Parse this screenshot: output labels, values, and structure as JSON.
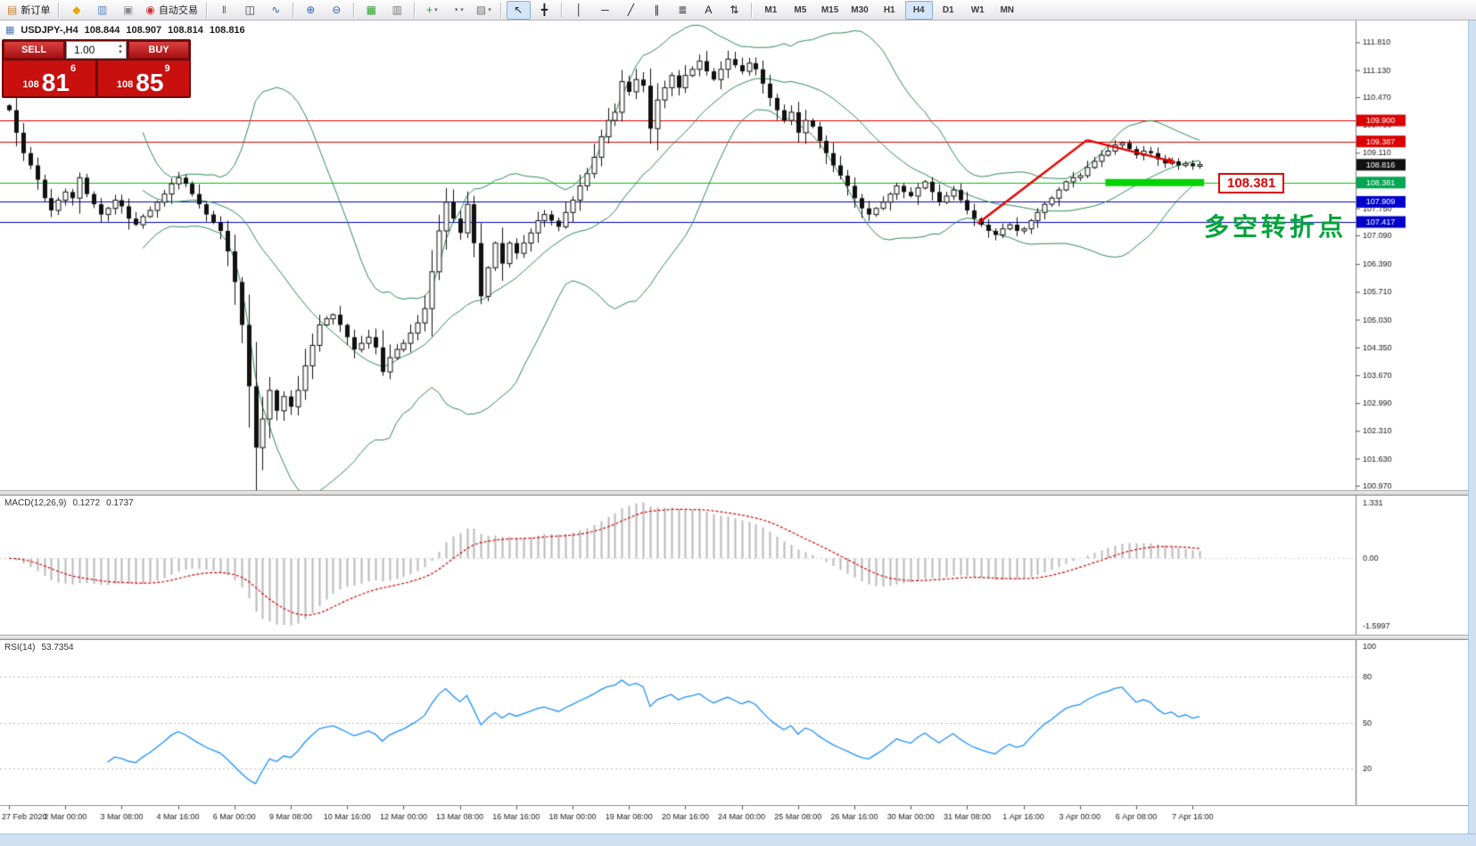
{
  "toolbar": {
    "groups": [
      {
        "items": [
          {
            "name": "new-order-button",
            "glyph": "▤",
            "color": "#c87f2f",
            "label": "新订单"
          }
        ]
      },
      {
        "items": [
          {
            "name": "metaquotes-button",
            "glyph": "◆",
            "color": "#e8a800"
          },
          {
            "name": "profiles-button",
            "glyph": "▥",
            "color": "#5b87c5"
          },
          {
            "name": "data-window-button",
            "glyph": "▣",
            "color": "#8a8a8a"
          },
          {
            "name": "autotrading-button",
            "glyph": "◉",
            "color": "#cc3333",
            "label": "自动交易"
          }
        ]
      },
      {
        "items": [
          {
            "name": "bar-chart-button",
            "glyph": "‖",
            "color": "#2e7d32"
          },
          {
            "name": "candlestick-chart-button",
            "glyph": "◫",
            "color": "#333333"
          },
          {
            "name": "line-chart-button",
            "glyph": "∿",
            "color": "#2f62b5"
          }
        ]
      },
      {
        "items": [
          {
            "name": "zoom-in-button",
            "glyph": "⊕",
            "color": "#2f62b5"
          },
          {
            "name": "zoom-out-button",
            "glyph": "⊖",
            "color": "#2f62b5"
          }
        ]
      },
      {
        "items": [
          {
            "name": "tile-windows-button",
            "glyph": "▦",
            "color": "#2f9e2f"
          },
          {
            "name": "cascade-windows-button",
            "glyph": "▥",
            "color": "#777777"
          }
        ]
      },
      {
        "items": [
          {
            "name": "new-chart-button",
            "glyph": "+",
            "color": "#1e9e1e",
            "dropdown": true
          },
          {
            "name": "periods-button",
            "glyph": "◔",
            "color": "#555555",
            "dropdown": true
          },
          {
            "name": "templates-button",
            "glyph": "▨",
            "color": "#777777",
            "dropdown": true
          }
        ]
      },
      {
        "items": [
          {
            "name": "cursor-button",
            "glyph": "↖",
            "color": "#222222",
            "active": true
          },
          {
            "name": "crosshair-button",
            "glyph": "╋",
            "color": "#222222"
          }
        ]
      },
      {
        "items": [
          {
            "name": "vertical-line-tool",
            "glyph": "│",
            "color": "#222222"
          },
          {
            "name": "horizontal-line-tool",
            "glyph": "─",
            "color": "#222222"
          },
          {
            "name": "trendline-tool",
            "glyph": "╱",
            "color": "#222222"
          },
          {
            "name": "channel-tool",
            "glyph": "∥",
            "color": "#222222"
          },
          {
            "name": "fibonacci-tool",
            "glyph": "≣",
            "color": "#222222"
          },
          {
            "name": "text-tool",
            "glyph": "A",
            "color": "#222222"
          },
          {
            "name": "arrows-tool",
            "glyph": "⇅",
            "color": "#222222"
          }
        ]
      },
      {
        "items": [
          {
            "name": "tf-m1-button",
            "label2": "M1",
            "tf": true
          },
          {
            "name": "tf-m5-button",
            "label2": "M5",
            "tf": true
          },
          {
            "name": "tf-m15-button",
            "label2": "M15",
            "tf": true
          },
          {
            "name": "tf-m30-button",
            "label2": "M30",
            "tf": true
          },
          {
            "name": "tf-h1-button",
            "label2": "H1",
            "tf": true
          },
          {
            "name": "tf-h4-button",
            "label2": "H4",
            "tf": true,
            "active": true
          },
          {
            "name": "tf-d1-button",
            "label2": "D1",
            "tf": true
          },
          {
            "name": "tf-w1-button",
            "label2": "W1",
            "tf": true
          },
          {
            "name": "tf-mn-button",
            "label2": "MN",
            "tf": true
          }
        ]
      }
    ]
  },
  "chart": {
    "header": {
      "symbol_period": "USDJPY-,H4",
      "open": "108.844",
      "high": "108.907",
      "low": "108.814",
      "close": "108.816"
    },
    "trade_panel": {
      "sell_label": "SELL",
      "buy_label": "BUY",
      "volume": "1.00",
      "sell_price": {
        "prefix": "108",
        "main": "81",
        "sup": "6"
      },
      "buy_price": {
        "prefix": "108",
        "main": "85",
        "sup": "9"
      }
    },
    "annotations": {
      "price_box": "108.381",
      "cn_note": "多空转折点"
    }
  },
  "chart_data": {
    "type": "candlestick",
    "title": "USDJPY- H4",
    "bars_per_label": 8,
    "x_labels": [
      "27 Feb 2020",
      "2 Mar 00:00",
      "3 Mar 08:00",
      "4 Mar 16:00",
      "6 Mar 00:00",
      "9 Mar 08:00",
      "10 Mar 16:00",
      "12 Mar 00:00",
      "13 Mar 08:00",
      "16 Mar 16:00",
      "18 Mar 00:00",
      "19 Mar 08:00",
      "20 Mar 16:00",
      "24 Mar 00:00",
      "25 Mar 08:00",
      "26 Mar 16:00",
      "30 Mar 00:00",
      "31 Mar 08:00",
      "1 Apr 16:00",
      "3 Apr 00:00",
      "6 Apr 08:00",
      "7 Apr 16:00"
    ],
    "closes": [
      110.15,
      109.6,
      109.1,
      108.8,
      108.45,
      108.0,
      107.7,
      107.95,
      108.15,
      108.0,
      108.5,
      108.1,
      107.85,
      107.6,
      107.75,
      107.95,
      107.8,
      107.5,
      107.35,
      107.55,
      107.7,
      107.9,
      108.1,
      108.35,
      108.5,
      108.35,
      108.1,
      107.85,
      107.6,
      107.4,
      107.2,
      106.7,
      105.95,
      104.9,
      103.4,
      101.9,
      102.6,
      103.3,
      102.8,
      103.15,
      102.9,
      103.3,
      103.9,
      104.4,
      104.9,
      105.05,
      105.15,
      104.9,
      104.6,
      104.3,
      104.45,
      104.6,
      104.35,
      103.75,
      104.1,
      104.3,
      104.45,
      104.7,
      104.95,
      105.3,
      106.2,
      107.2,
      107.9,
      107.5,
      107.15,
      107.85,
      106.9,
      105.6,
      106.3,
      106.9,
      106.4,
      106.9,
      106.65,
      106.9,
      107.15,
      107.45,
      107.6,
      107.45,
      107.3,
      107.65,
      107.95,
      108.3,
      108.6,
      109.0,
      109.5,
      109.9,
      110.1,
      110.85,
      110.6,
      110.9,
      110.75,
      109.7,
      110.4,
      110.7,
      111.0,
      110.7,
      111.0,
      111.15,
      111.35,
      111.1,
      110.9,
      111.15,
      111.4,
      111.25,
      111.1,
      111.3,
      111.15,
      110.8,
      110.45,
      110.15,
      109.9,
      110.1,
      109.6,
      109.9,
      109.75,
      109.4,
      109.1,
      108.8,
      108.55,
      108.3,
      108.0,
      107.75,
      107.6,
      107.75,
      107.9,
      108.1,
      108.3,
      108.15,
      108.05,
      108.25,
      108.4,
      108.15,
      107.9,
      108.05,
      108.2,
      107.95,
      107.7,
      107.5,
      107.35,
      107.2,
      107.1,
      107.25,
      107.35,
      107.2,
      107.25,
      107.45,
      107.65,
      107.85,
      108.0,
      108.2,
      108.4,
      108.5,
      108.55,
      108.75,
      108.9,
      109.05,
      109.15,
      109.3,
      109.35,
      109.2,
      109.05,
      109.15,
      109.1,
      108.95,
      108.85,
      108.9,
      108.8,
      108.85,
      108.78,
      108.82
    ],
    "ylim": [
      100.9,
      112.3
    ],
    "y_axis_ticks": [
      "111.810",
      "111.130",
      "110.470",
      "109.790",
      "109.110",
      "108.430",
      "107.750",
      "107.090",
      "106.390",
      "105.710",
      "105.030",
      "104.350",
      "103.670",
      "102.990",
      "102.310",
      "101.630",
      "100.970"
    ],
    "bollinger": {
      "period": 20,
      "deviation": 2,
      "color": "#2e8b57"
    },
    "h_lines": [
      {
        "price": 109.9,
        "label": "109.900",
        "color": "#dd0000"
      },
      {
        "price": 109.387,
        "label": "109.387",
        "color": "#dd0000"
      },
      {
        "price": 108.381,
        "label": "108.381",
        "color": "#00a651",
        "line_color": "#00c400"
      },
      {
        "price": 107.909,
        "label": "107.909",
        "color": "#0000cc"
      },
      {
        "price": 107.417,
        "label": "107.417",
        "color": "#0000cc"
      }
    ],
    "current_price": {
      "value": 108.816,
      "label": "108.816",
      "color": "#111111"
    },
    "green_zone": {
      "from_bar": 156,
      "to_bar": 169,
      "price": 108.381,
      "color": "#00d300"
    },
    "trend_arrows": {
      "color": "#e60000",
      "segments": [
        {
          "from_bar": 137.5,
          "from_price": 107.38,
          "to_bar": 153,
          "to_price": 109.42,
          "arrow": false
        },
        {
          "from_bar": 153,
          "from_price": 109.42,
          "to_bar": 165.5,
          "to_price": 108.88,
          "arrow": true
        }
      ]
    },
    "macd": {
      "label": "MACD(12,26,9)",
      "value_main": "0.1272",
      "value_signal": "0.1737",
      "fast": 12,
      "slow": 26,
      "signal": 9,
      "axis_max": "1.331",
      "axis_zero": "0.00",
      "axis_min": "-1.5997",
      "histogram_color": "#b9b9b9",
      "signal_color": "#d40000"
    },
    "rsi": {
      "label": "RSI(14)",
      "value": "53.7354",
      "period": 14,
      "levels": [
        "80",
        "50",
        "20"
      ],
      "axis_top": "100",
      "color": "#1e90ff"
    }
  }
}
